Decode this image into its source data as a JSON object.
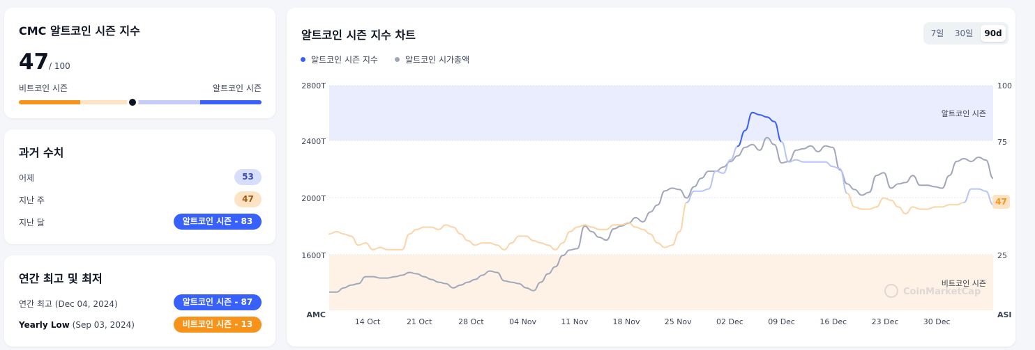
{
  "index_card": {
    "title": "CMC 알트코인 시즌 지수",
    "value": "47",
    "max": "/ 100",
    "left_label": "비트코인 시즌",
    "right_label": "알트코인 시즌",
    "gauge_value": 47
  },
  "history": {
    "title": "과거 수치",
    "rows": [
      {
        "label": "어제",
        "value": "53"
      },
      {
        "label": "지난 주",
        "value": "47"
      },
      {
        "label": "지난 달",
        "value": "알트코인 시즌 - 83"
      }
    ]
  },
  "yearly": {
    "title": "연간 최고 및 최저",
    "high_label": "연간 최고",
    "high_date": "(Dec 04, 2024)",
    "high_value": "알트코인 시즌 - 87",
    "low_label": "Yearly Low",
    "low_date": "(Sep 03, 2024)",
    "low_value": "비트코인 시즌 - 13"
  },
  "chart": {
    "title": "알트코인 시즌 지수 차트",
    "ranges": [
      "7일",
      "30일",
      "90d"
    ],
    "active_range": "90d",
    "legend": [
      "알트코인 시즌 지수",
      "알트코인 시가총액"
    ],
    "alt_zone_label": "알트코인 시즌",
    "btc_zone_label": "비트코인 시즌",
    "watermark": "CoinMarketCap",
    "current_badge": "47",
    "left_axis_title": "AMC",
    "right_axis_title": "ASI",
    "colors": {
      "alt": "#3861fb",
      "btc": "#f7931a",
      "mcap": "#a1a7bb"
    }
  },
  "chart_data": {
    "type": "line",
    "x_ticks": [
      "14 Oct",
      "21 Oct",
      "28 Oct",
      "04 Nov",
      "11 Nov",
      "18 Nov",
      "25 Nov",
      "02 Dec",
      "09 Dec",
      "16 Dec",
      "23 Dec",
      "30 Dec"
    ],
    "left_axis": {
      "ticks": [
        "2800T",
        "2400T",
        "2000T",
        "1600T"
      ],
      "range": [
        1200,
        2800
      ]
    },
    "right_axis": {
      "ticks": [
        "100",
        "75",
        "25"
      ],
      "range": [
        0,
        100
      ]
    },
    "series": [
      {
        "name": "알트코인 시즌 지수",
        "axis": "right",
        "values": [
          34,
          35,
          34,
          33,
          29,
          30,
          27,
          28,
          27,
          27,
          27,
          34,
          36,
          37,
          37,
          36,
          38,
          37,
          34,
          31,
          29,
          30,
          30,
          29,
          27,
          30,
          33,
          33,
          31,
          30,
          29,
          27,
          30,
          35,
          37,
          38,
          37,
          36,
          36,
          38,
          38,
          39,
          37,
          36,
          34,
          30,
          28,
          29,
          35,
          48,
          53,
          53,
          54,
          62,
          61,
          67,
          73,
          80,
          88,
          87,
          86,
          84,
          75,
          66,
          67,
          66,
          66,
          66,
          66,
          64,
          63,
          52,
          46,
          45,
          45,
          46,
          50,
          49,
          46,
          43,
          46,
          45,
          45,
          46,
          46,
          47,
          47,
          48,
          54,
          54,
          53,
          47
        ]
      },
      {
        "name": "알트코인 시가총액",
        "axis": "left",
        "values": [
          1330,
          1330,
          1360,
          1380,
          1390,
          1440,
          1440,
          1430,
          1430,
          1440,
          1450,
          1470,
          1460,
          1440,
          1420,
          1400,
          1390,
          1360,
          1380,
          1400,
          1420,
          1450,
          1480,
          1470,
          1410,
          1400,
          1390,
          1360,
          1340,
          1400,
          1460,
          1510,
          1590,
          1630,
          1640,
          1800,
          1760,
          1720,
          1700,
          1780,
          1800,
          1820,
          1860,
          1830,
          1900,
          1950,
          2050,
          2070,
          2060,
          2000,
          2080,
          2140,
          2190,
          2190,
          2220,
          2260,
          2300,
          2360,
          2380,
          2340,
          2430,
          2380,
          2250,
          2260,
          2340,
          2350,
          2370,
          2330,
          2370,
          2360,
          2200,
          2100,
          2060,
          2020,
          2040,
          2160,
          2180,
          2070,
          2100,
          2110,
          2160,
          2090,
          2090,
          2080,
          2070,
          2160,
          2260,
          2280,
          2260,
          2290,
          2270,
          2140
        ]
      }
    ]
  }
}
